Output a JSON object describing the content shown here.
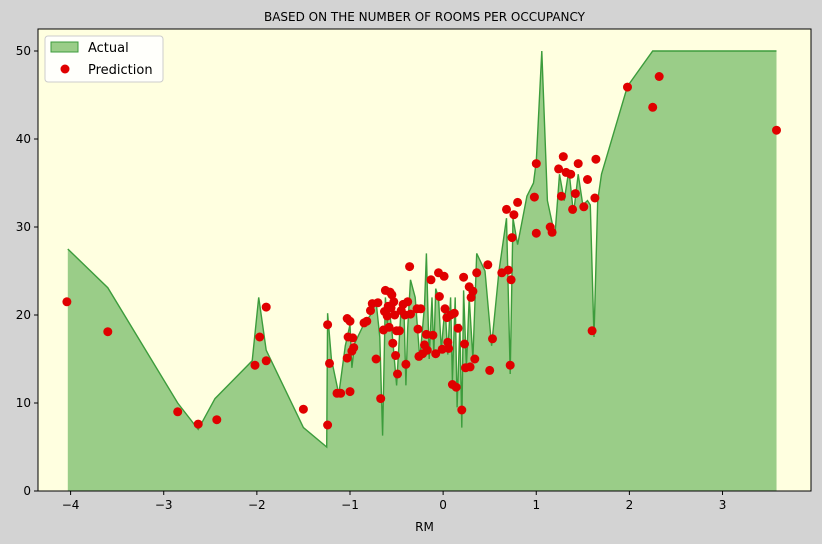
{
  "chart_data": {
    "type": "area+scatter",
    "title": "BASED ON THE NUMBER OF ROOMS PER OCCUPANCY",
    "xlabel": "RM",
    "ylabel": "",
    "xlim": [
      -4.35,
      3.95
    ],
    "ylim": [
      0,
      52.5
    ],
    "xticks": [
      -4,
      -3,
      -2,
      -1,
      0,
      1,
      2,
      3
    ],
    "yticks": [
      0,
      10,
      20,
      30,
      40,
      50
    ],
    "grid": false,
    "legend": "top-left",
    "colors": {
      "plot_bg": "#ffffe0",
      "figure_bg": "#d3d3d3",
      "area_fill": "#9acd88",
      "area_line": "#3c9c3c",
      "point": "#e00000"
    },
    "series": [
      {
        "name": "Actual",
        "kind": "area",
        "points": [
          [
            -4.03,
            27.5
          ],
          [
            -3.6,
            23.1
          ],
          [
            -2.85,
            10.0
          ],
          [
            -2.63,
            7.0
          ],
          [
            -2.45,
            10.5
          ],
          [
            -2.05,
            14.8
          ],
          [
            -1.98,
            22.0
          ],
          [
            -1.9,
            16.0
          ],
          [
            -1.5,
            7.2
          ],
          [
            -1.25,
            5.0
          ],
          [
            -1.24,
            20.2
          ],
          [
            -1.2,
            15.0
          ],
          [
            -1.12,
            11.0
          ],
          [
            -1.05,
            16.5
          ],
          [
            -1.0,
            18.9
          ],
          [
            -0.98,
            14.0
          ],
          [
            -0.95,
            16.8
          ],
          [
            -0.85,
            19.0
          ],
          [
            -0.78,
            20.0
          ],
          [
            -0.72,
            21.5
          ],
          [
            -0.68,
            17.5
          ],
          [
            -0.65,
            6.3
          ],
          [
            -0.62,
            22.0
          ],
          [
            -0.6,
            19.0
          ],
          [
            -0.58,
            20.7
          ],
          [
            -0.55,
            18.2
          ],
          [
            -0.5,
            12.0
          ],
          [
            -0.45,
            21.0
          ],
          [
            -0.42,
            20.5
          ],
          [
            -0.4,
            12.0
          ],
          [
            -0.38,
            18.5
          ],
          [
            -0.35,
            24.0
          ],
          [
            -0.3,
            22.0
          ],
          [
            -0.25,
            15.0
          ],
          [
            -0.2,
            21.0
          ],
          [
            -0.18,
            27.0
          ],
          [
            -0.15,
            15.0
          ],
          [
            -0.12,
            22.0
          ],
          [
            -0.1,
            15.5
          ],
          [
            -0.08,
            23.0
          ],
          [
            -0.05,
            22.0
          ],
          [
            -0.02,
            16.0
          ],
          [
            0.02,
            21.0
          ],
          [
            0.05,
            15.5
          ],
          [
            0.08,
            22.0
          ],
          [
            0.1,
            12.5
          ],
          [
            0.13,
            22.0
          ],
          [
            0.15,
            9.5
          ],
          [
            0.18,
            19.0
          ],
          [
            0.2,
            7.2
          ],
          [
            0.22,
            22.8
          ],
          [
            0.25,
            14.0
          ],
          [
            0.28,
            22.0
          ],
          [
            0.32,
            15.0
          ],
          [
            0.36,
            27.0
          ],
          [
            0.45,
            25.0
          ],
          [
            0.52,
            16.5
          ],
          [
            0.6,
            25.0
          ],
          [
            0.68,
            31.0
          ],
          [
            0.72,
            13.3
          ],
          [
            0.75,
            31.0
          ],
          [
            0.8,
            28.0
          ],
          [
            0.9,
            33.5
          ],
          [
            0.97,
            35.0
          ],
          [
            1.0,
            37.5
          ],
          [
            1.06,
            50.0
          ],
          [
            1.12,
            33.0
          ],
          [
            1.2,
            29.0
          ],
          [
            1.25,
            36.0
          ],
          [
            1.3,
            33.0
          ],
          [
            1.35,
            36.5
          ],
          [
            1.4,
            31.5
          ],
          [
            1.45,
            36.0
          ],
          [
            1.5,
            32.5
          ],
          [
            1.55,
            33.0
          ],
          [
            1.58,
            32.5
          ],
          [
            1.62,
            17.5
          ],
          [
            1.66,
            33.0
          ],
          [
            1.7,
            36.0
          ],
          [
            1.98,
            46.0
          ],
          [
            2.25,
            50.0
          ],
          [
            3.58,
            50.0
          ]
        ]
      },
      {
        "name": "Prediction",
        "kind": "scatter",
        "points": [
          [
            -4.04,
            21.5
          ],
          [
            -3.6,
            18.1
          ],
          [
            -2.85,
            9.0
          ],
          [
            -2.63,
            7.6
          ],
          [
            -2.43,
            8.1
          ],
          [
            -2.02,
            14.3
          ],
          [
            -1.97,
            17.5
          ],
          [
            -1.9,
            20.9
          ],
          [
            -1.9,
            14.8
          ],
          [
            -1.5,
            9.3
          ],
          [
            -1.24,
            7.5
          ],
          [
            -1.24,
            18.9
          ],
          [
            -1.22,
            14.5
          ],
          [
            -1.14,
            11.1
          ],
          [
            -1.1,
            11.1
          ],
          [
            -1.03,
            15.1
          ],
          [
            -1.03,
            19.6
          ],
          [
            -1.02,
            17.5
          ],
          [
            -1.0,
            11.3
          ],
          [
            -1.0,
            19.3
          ],
          [
            -0.98,
            15.9
          ],
          [
            -0.97,
            17.4
          ],
          [
            -0.96,
            16.3
          ],
          [
            -0.85,
            19.1
          ],
          [
            -0.82,
            19.3
          ],
          [
            -0.78,
            20.5
          ],
          [
            -0.76,
            21.3
          ],
          [
            -0.72,
            15.0
          ],
          [
            -0.7,
            21.4
          ],
          [
            -0.67,
            10.5
          ],
          [
            -0.64,
            18.3
          ],
          [
            -0.63,
            20.4
          ],
          [
            -0.62,
            22.8
          ],
          [
            -0.6,
            19.9
          ],
          [
            -0.59,
            21.0
          ],
          [
            -0.58,
            18.6
          ],
          [
            -0.57,
            22.6
          ],
          [
            -0.56,
            20.8
          ],
          [
            -0.55,
            22.3
          ],
          [
            -0.54,
            16.8
          ],
          [
            -0.53,
            21.5
          ],
          [
            -0.52,
            20.0
          ],
          [
            -0.51,
            15.4
          ],
          [
            -0.5,
            18.2
          ],
          [
            -0.49,
            13.3
          ],
          [
            -0.47,
            18.2
          ],
          [
            -0.45,
            20.5
          ],
          [
            -0.43,
            21.2
          ],
          [
            -0.41,
            20.0
          ],
          [
            -0.4,
            14.4
          ],
          [
            -0.38,
            21.5
          ],
          [
            -0.36,
            25.5
          ],
          [
            -0.35,
            20.1
          ],
          [
            -0.28,
            20.7
          ],
          [
            -0.27,
            18.4
          ],
          [
            -0.26,
            15.3
          ],
          [
            -0.24,
            20.7
          ],
          [
            -0.22,
            15.6
          ],
          [
            -0.2,
            16.6
          ],
          [
            -0.18,
            17.8
          ],
          [
            -0.17,
            16.0
          ],
          [
            -0.13,
            24.0
          ],
          [
            -0.11,
            17.7
          ],
          [
            -0.08,
            15.6
          ],
          [
            -0.05,
            24.8
          ],
          [
            -0.04,
            22.1
          ],
          [
            -0.01,
            16.1
          ],
          [
            0.01,
            24.4
          ],
          [
            0.02,
            20.7
          ],
          [
            0.04,
            19.7
          ],
          [
            0.05,
            16.9
          ],
          [
            0.06,
            16.2
          ],
          [
            0.08,
            20.0
          ],
          [
            0.1,
            12.1
          ],
          [
            0.12,
            20.2
          ],
          [
            0.14,
            11.8
          ],
          [
            0.16,
            18.5
          ],
          [
            0.2,
            9.2
          ],
          [
            0.22,
            24.3
          ],
          [
            0.23,
            16.7
          ],
          [
            0.24,
            14.0
          ],
          [
            0.28,
            23.2
          ],
          [
            0.29,
            14.1
          ],
          [
            0.3,
            22.0
          ],
          [
            0.32,
            22.7
          ],
          [
            0.34,
            15.0
          ],
          [
            0.36,
            24.8
          ],
          [
            0.48,
            25.7
          ],
          [
            0.5,
            13.7
          ],
          [
            0.53,
            17.3
          ],
          [
            0.63,
            24.8
          ],
          [
            0.68,
            32.0
          ],
          [
            0.7,
            25.1
          ],
          [
            0.72,
            14.3
          ],
          [
            0.73,
            24.0
          ],
          [
            0.74,
            28.8
          ],
          [
            0.76,
            31.4
          ],
          [
            0.8,
            32.8
          ],
          [
            0.98,
            33.4
          ],
          [
            1.0,
            29.3
          ],
          [
            1.0,
            37.2
          ],
          [
            1.15,
            30.0
          ],
          [
            1.17,
            29.4
          ],
          [
            1.24,
            36.6
          ],
          [
            1.27,
            33.5
          ],
          [
            1.29,
            38.0
          ],
          [
            1.32,
            36.2
          ],
          [
            1.37,
            36.0
          ],
          [
            1.39,
            32.0
          ],
          [
            1.42,
            33.8
          ],
          [
            1.45,
            37.2
          ],
          [
            1.51,
            32.3
          ],
          [
            1.55,
            35.4
          ],
          [
            1.6,
            18.2
          ],
          [
            1.63,
            33.3
          ],
          [
            1.64,
            37.7
          ],
          [
            1.98,
            45.9
          ],
          [
            2.25,
            43.6
          ],
          [
            2.32,
            47.1
          ],
          [
            3.58,
            41.0
          ]
        ]
      }
    ]
  }
}
